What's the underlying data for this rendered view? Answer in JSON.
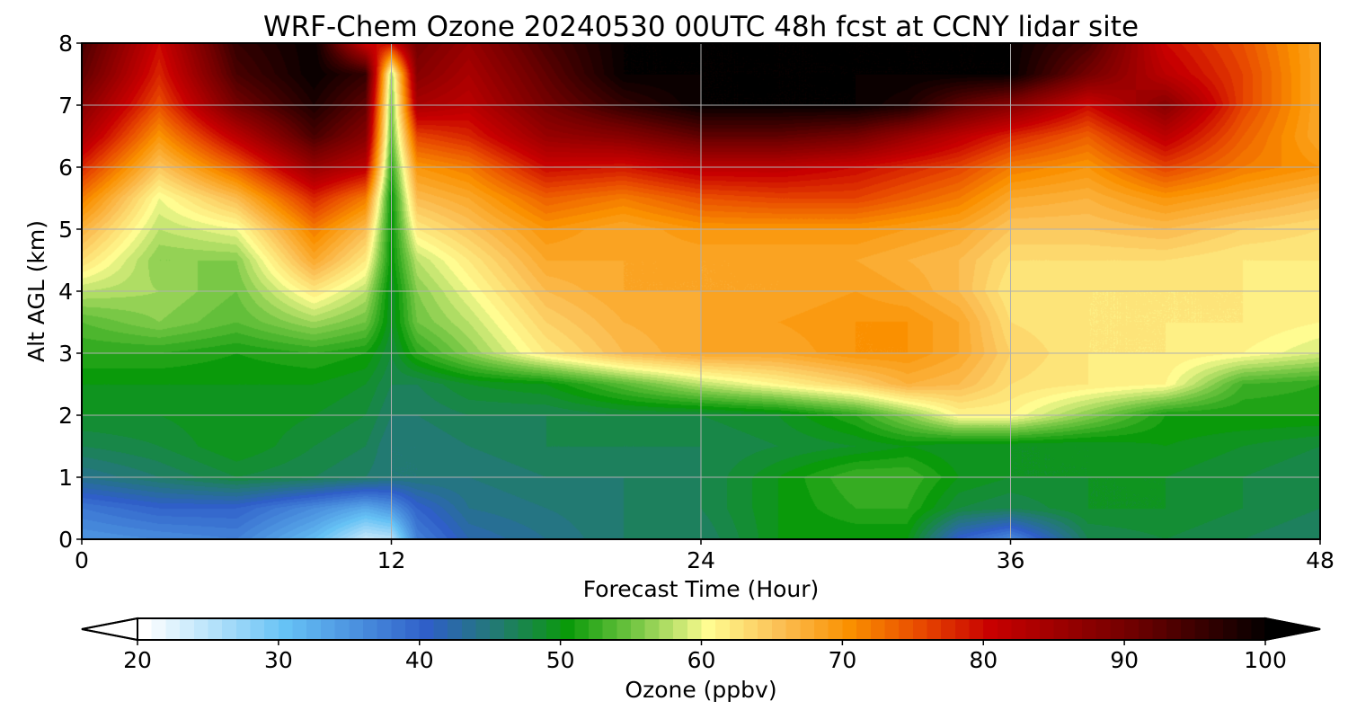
{
  "chart_data": {
    "type": "heatmap",
    "title": "WRF-Chem Ozone  20240530 00UTC 48h fcst at CCNY lidar site",
    "xlabel": "Forecast Time (Hour)",
    "ylabel": "Alt AGL (km)",
    "xlim": [
      0,
      48
    ],
    "ylim": [
      0,
      8
    ],
    "xticks": [
      "0",
      "12",
      "24",
      "36",
      "48"
    ],
    "yticks": [
      "0",
      "1",
      "2",
      "3",
      "4",
      "5",
      "6",
      "7",
      "8"
    ],
    "grid": true,
    "colorbar": {
      "label": "Ozone  (ppbv)",
      "orientation": "horizontal",
      "extend": "both",
      "range": [
        20,
        100
      ],
      "ticks": [
        "20",
        "30",
        "40",
        "50",
        "60",
        "70",
        "80",
        "90",
        "100"
      ],
      "stops": [
        {
          "value": 20,
          "color": "#ffffff"
        },
        {
          "value": 30,
          "color": "#66c2f5"
        },
        {
          "value": 40,
          "color": "#2f5fc8"
        },
        {
          "value": 45,
          "color": "#227a72"
        },
        {
          "value": 50,
          "color": "#0a9a0a"
        },
        {
          "value": 55,
          "color": "#79c846"
        },
        {
          "value": 60,
          "color": "#fffc91"
        },
        {
          "value": 65,
          "color": "#fbc055"
        },
        {
          "value": 70,
          "color": "#fa9000"
        },
        {
          "value": 75,
          "color": "#e84a00"
        },
        {
          "value": 80,
          "color": "#c80000"
        },
        {
          "value": 90,
          "color": "#700000"
        },
        {
          "value": 100,
          "color": "#000000"
        }
      ]
    },
    "z_hour_levels": [
      0,
      3,
      6,
      9,
      11,
      12,
      13,
      15,
      18,
      21,
      24,
      27,
      30,
      32,
      34,
      36,
      39,
      42,
      45,
      48
    ],
    "z_alt_levels_km": [
      0,
      0.5,
      1,
      1.5,
      2,
      2.5,
      3,
      3.5,
      4,
      4.5,
      5,
      5.5,
      6,
      6.5,
      7,
      7.5,
      8
    ],
    "z_ppbv": [
      [
        35,
        36,
        37,
        31,
        24,
        25,
        37,
        42,
        44,
        46,
        46,
        50,
        50,
        50,
        40,
        36,
        47,
        48,
        47,
        46
      ],
      [
        38,
        40,
        40,
        36,
        33,
        35,
        40,
        44,
        45,
        46,
        47,
        50,
        52,
        52,
        48,
        47,
        49,
        49,
        48,
        47
      ],
      [
        44,
        46,
        48,
        47,
        46,
        45,
        45,
        45,
        46,
        46,
        47,
        50,
        53,
        53,
        50,
        49,
        49,
        49,
        48,
        47
      ],
      [
        47,
        48,
        50,
        48,
        47,
        45,
        45,
        46,
        47,
        47,
        47,
        48,
        49,
        50,
        49,
        49,
        49,
        50,
        49,
        48
      ],
      [
        49,
        49,
        50,
        49,
        48,
        46,
        46,
        47,
        47,
        48,
        48,
        49,
        52,
        56,
        61,
        61,
        56,
        51,
        51,
        51
      ],
      [
        50,
        50,
        50,
        50,
        49,
        47,
        47,
        49,
        50,
        54,
        58,
        61,
        64,
        67,
        66,
        63,
        62,
        61,
        53,
        52
      ],
      [
        52,
        52,
        51,
        52,
        51,
        48,
        52,
        56,
        62,
        66,
        68,
        68,
        70,
        70,
        68,
        64,
        62,
        62,
        61,
        59
      ],
      [
        54,
        56,
        54,
        57,
        55,
        49,
        55,
        58,
        64,
        67,
        68,
        69,
        70,
        70,
        68,
        63,
        62,
        62,
        62,
        61
      ],
      [
        58,
        57,
        55,
        62,
        58,
        49,
        56,
        60,
        66,
        68,
        68,
        68,
        69,
        68,
        66,
        62,
        62,
        62,
        62,
        61
      ],
      [
        63,
        56,
        56,
        68,
        62,
        50,
        58,
        62,
        68,
        68,
        68,
        68,
        68,
        67,
        66,
        63,
        63,
        63,
        62,
        62
      ],
      [
        67,
        58,
        60,
        72,
        66,
        50,
        62,
        65,
        70,
        68,
        70,
        70,
        70,
        69,
        68,
        65,
        65,
        66,
        64,
        63
      ],
      [
        72,
        60,
        66,
        78,
        72,
        50,
        66,
        68,
        74,
        72,
        75,
        76,
        76,
        74,
        72,
        68,
        67,
        70,
        68,
        66
      ],
      [
        78,
        65,
        74,
        86,
        82,
        52,
        70,
        72,
        80,
        79,
        82,
        82,
        80,
        78,
        76,
        72,
        70,
        76,
        72,
        70
      ],
      [
        84,
        70,
        82,
        94,
        88,
        54,
        76,
        78,
        86,
        88,
        92,
        92,
        90,
        86,
        82,
        78,
        74,
        82,
        74,
        68
      ],
      [
        88,
        75,
        90,
        98,
        92,
        55,
        84,
        82,
        90,
        96,
        100,
        100,
        100,
        98,
        92,
        88,
        80,
        88,
        76,
        68
      ],
      [
        92,
        78,
        94,
        100,
        96,
        57,
        88,
        84,
        92,
        100,
        100,
        100,
        100,
        100,
        100,
        100,
        90,
        82,
        76,
        68
      ],
      [
        94,
        80,
        96,
        100,
        80,
        80,
        90,
        86,
        94,
        100,
        100,
        100,
        100,
        100,
        100,
        100,
        94,
        80,
        75,
        68
      ]
    ]
  }
}
